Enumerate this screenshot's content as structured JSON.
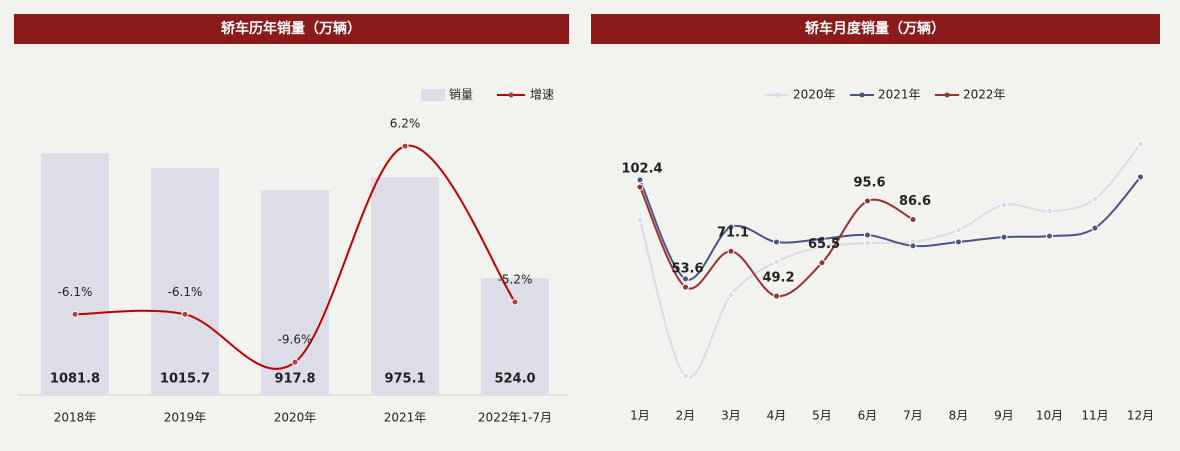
{
  "chart_data": [
    {
      "type": "bar",
      "title": "轿车历年销量（万辆）",
      "categories": [
        "2018年",
        "2019年",
        "2020年",
        "2021年",
        "2022年1-7月"
      ],
      "series": [
        {
          "name": "销量",
          "color": "#dcdde8",
          "values": [
            1081.8,
            1015.7,
            917.8,
            975.1,
            524.0
          ],
          "value_labels": [
            "1081.8",
            "1015.7",
            "917.8",
            "975.1",
            "524.0"
          ]
        },
        {
          "name": "增速",
          "type": "line",
          "axis": "y2",
          "color": "#c00000",
          "values": [
            -6.1,
            -6.1,
            -9.6,
            6.2,
            -5.2
          ],
          "value_labels": [
            "-6.1%",
            "-6.1%",
            "-9.6%",
            "6.2%",
            "-5.2%"
          ]
        }
      ],
      "ylim": [
        0,
        1500
      ],
      "y2lim": [
        -12,
        12.5
      ],
      "legend": "top-right"
    },
    {
      "type": "line",
      "title": "轿车月度销量（万辆）",
      "categories": [
        "1月",
        "2月",
        "3月",
        "4月",
        "5月",
        "6月",
        "7月",
        "8月",
        "9月",
        "10月",
        "11月",
        "12月"
      ],
      "series": [
        {
          "name": "2020年",
          "color": "#d9dbe8",
          "values": [
            86.3,
            10.2,
            49.8,
            65.9,
            73.2,
            75.1,
            75.6,
            81.5,
            93.7,
            90.7,
            96.6,
            123.4
          ]
        },
        {
          "name": "2021年",
          "color": "#4a5585",
          "values": [
            105.9,
            57.6,
            82.9,
            75.6,
            77.1,
            79.0,
            73.7,
            75.6,
            78.0,
            78.5,
            82.4,
            107.3
          ]
        },
        {
          "name": "2022年",
          "color": "#9b3030",
          "values": [
            102.4,
            53.6,
            71.1,
            49.2,
            65.5,
            95.6,
            86.6,
            null,
            null,
            null,
            null,
            null
          ],
          "show_labels": true
        }
      ],
      "ylim": [
        0,
        140
      ],
      "legend": "top-center"
    }
  ]
}
